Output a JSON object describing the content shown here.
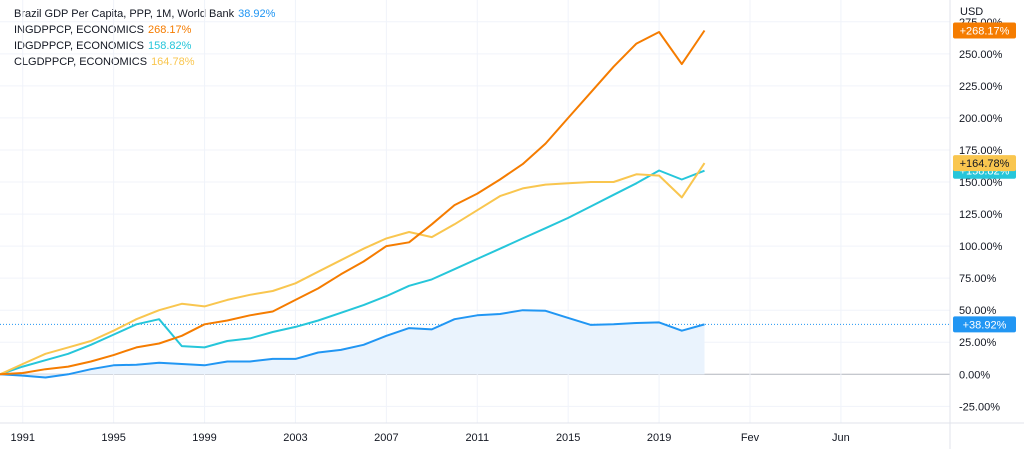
{
  "colors": {
    "brazil": "#2196f3",
    "india": "#f57c00",
    "indonesia": "#26c6da",
    "chile": "#f9c64f",
    "grid": "#f0f3fa",
    "axis_text": "#131722",
    "baseline": "#b2b5be",
    "area_fill": "#eaf3fd"
  },
  "legend": [
    {
      "label": "Brazil GDP Per Capita, PPP, 1M, World Bank",
      "value": "38.92%",
      "color": "#2196f3"
    },
    {
      "label": "INGDPPCP, ECONOMICS",
      "value": "268.17%",
      "color": "#f57c00"
    },
    {
      "label": "IDGDPPCP, ECONOMICS",
      "value": "158.82%",
      "color": "#26c6da"
    },
    {
      "label": "CLGDPPCP, ECONOMICS",
      "value": "164.78%",
      "color": "#f9c64f"
    }
  ],
  "chart_data": {
    "type": "line",
    "y_unit": "USD",
    "y_axis_ticks": [
      "275.00%",
      "250.00%",
      "225.00%",
      "200.00%",
      "175.00%",
      "150.00%",
      "125.00%",
      "100.00%",
      "75.00%",
      "50.00%",
      "25.00%",
      "0.00%",
      "-25.00%"
    ],
    "x_axis_ticks": [
      {
        "label": "1991",
        "x": 1991
      },
      {
        "label": "1995",
        "x": 1995
      },
      {
        "label": "1999",
        "x": 1999
      },
      {
        "label": "2003",
        "x": 2003
      },
      {
        "label": "2007",
        "x": 2007
      },
      {
        "label": "2011",
        "x": 2011
      },
      {
        "label": "2015",
        "x": 2015
      },
      {
        "label": "2019",
        "x": 2019
      },
      {
        "label": "Fev",
        "x": 2023
      },
      {
        "label": "Jun",
        "x": 2027
      }
    ],
    "xlim": [
      1990,
      2031.8
    ],
    "ylim": [
      -38,
      292
    ],
    "grid": true,
    "legend_position": "top-left",
    "series": [
      {
        "key": "brazil",
        "area": true,
        "last_label": "+38.92%",
        "points": [
          [
            1990,
            0
          ],
          [
            1991,
            -1
          ],
          [
            1992,
            -2.5
          ],
          [
            1993,
            0
          ],
          [
            1994,
            4
          ],
          [
            1995,
            7
          ],
          [
            1996,
            7.5
          ],
          [
            1997,
            9
          ],
          [
            1998,
            8
          ],
          [
            1999,
            7
          ],
          [
            2000,
            10
          ],
          [
            2001,
            10
          ],
          [
            2002,
            12
          ],
          [
            2003,
            12
          ],
          [
            2004,
            17
          ],
          [
            2005,
            19
          ],
          [
            2006,
            23
          ],
          [
            2007,
            30
          ],
          [
            2008,
            36
          ],
          [
            2009,
            35
          ],
          [
            2010,
            43
          ],
          [
            2011,
            46
          ],
          [
            2012,
            47
          ],
          [
            2013,
            50
          ],
          [
            2014,
            49.5
          ],
          [
            2015,
            44
          ],
          [
            2016,
            38.5
          ],
          [
            2017,
            39
          ],
          [
            2018,
            40
          ],
          [
            2019,
            40.5
          ],
          [
            2020,
            34
          ],
          [
            2021,
            38.92
          ]
        ]
      },
      {
        "key": "indonesia",
        "last_label": "+158.82%",
        "points": [
          [
            1990,
            0
          ],
          [
            1991,
            6
          ],
          [
            1992,
            11
          ],
          [
            1993,
            16
          ],
          [
            1994,
            23
          ],
          [
            1995,
            31
          ],
          [
            1996,
            39
          ],
          [
            1997,
            43
          ],
          [
            1998,
            22
          ],
          [
            1999,
            21
          ],
          [
            2000,
            26
          ],
          [
            2001,
            28
          ],
          [
            2002,
            33
          ],
          [
            2003,
            37
          ],
          [
            2004,
            42
          ],
          [
            2005,
            48
          ],
          [
            2006,
            54
          ],
          [
            2007,
            61
          ],
          [
            2008,
            69
          ],
          [
            2009,
            74
          ],
          [
            2010,
            82
          ],
          [
            2011,
            90
          ],
          [
            2012,
            98
          ],
          [
            2013,
            106
          ],
          [
            2014,
            114
          ],
          [
            2015,
            122
          ],
          [
            2016,
            131
          ],
          [
            2017,
            140
          ],
          [
            2018,
            149
          ],
          [
            2019,
            159
          ],
          [
            2020,
            152
          ],
          [
            2021,
            158.82
          ]
        ]
      },
      {
        "key": "chile",
        "last_label": "+164.78%",
        "points": [
          [
            1990,
            0
          ],
          [
            1991,
            8
          ],
          [
            1992,
            16
          ],
          [
            1993,
            21
          ],
          [
            1994,
            26
          ],
          [
            1995,
            34
          ],
          [
            1996,
            43
          ],
          [
            1997,
            50
          ],
          [
            1998,
            55
          ],
          [
            1999,
            53
          ],
          [
            2000,
            58
          ],
          [
            2001,
            62
          ],
          [
            2002,
            65
          ],
          [
            2003,
            71
          ],
          [
            2004,
            80
          ],
          [
            2005,
            89
          ],
          [
            2006,
            98
          ],
          [
            2007,
            106
          ],
          [
            2008,
            111
          ],
          [
            2009,
            107
          ],
          [
            2010,
            117
          ],
          [
            2011,
            128
          ],
          [
            2012,
            139
          ],
          [
            2013,
            145
          ],
          [
            2014,
            148
          ],
          [
            2015,
            149
          ],
          [
            2016,
            150
          ],
          [
            2017,
            150
          ],
          [
            2018,
            156
          ],
          [
            2019,
            155
          ],
          [
            2020,
            138
          ],
          [
            2021,
            164.78
          ]
        ]
      },
      {
        "key": "india",
        "last_label": "+268.17%",
        "points": [
          [
            1990,
            0
          ],
          [
            1991,
            1
          ],
          [
            1992,
            4
          ],
          [
            1993,
            6
          ],
          [
            1994,
            10
          ],
          [
            1995,
            15
          ],
          [
            1996,
            21
          ],
          [
            1997,
            24
          ],
          [
            1998,
            30
          ],
          [
            1999,
            39
          ],
          [
            2000,
            42
          ],
          [
            2001,
            46
          ],
          [
            2002,
            49
          ],
          [
            2003,
            58
          ],
          [
            2004,
            67
          ],
          [
            2005,
            78
          ],
          [
            2006,
            88
          ],
          [
            2007,
            100
          ],
          [
            2008,
            103
          ],
          [
            2009,
            117
          ],
          [
            2010,
            132
          ],
          [
            2011,
            141
          ],
          [
            2012,
            152
          ],
          [
            2013,
            164
          ],
          [
            2014,
            180
          ],
          [
            2015,
            200
          ],
          [
            2016,
            220
          ],
          [
            2017,
            240
          ],
          [
            2018,
            258
          ],
          [
            2019,
            267
          ],
          [
            2020,
            242
          ],
          [
            2021,
            268.17
          ]
        ]
      }
    ]
  }
}
